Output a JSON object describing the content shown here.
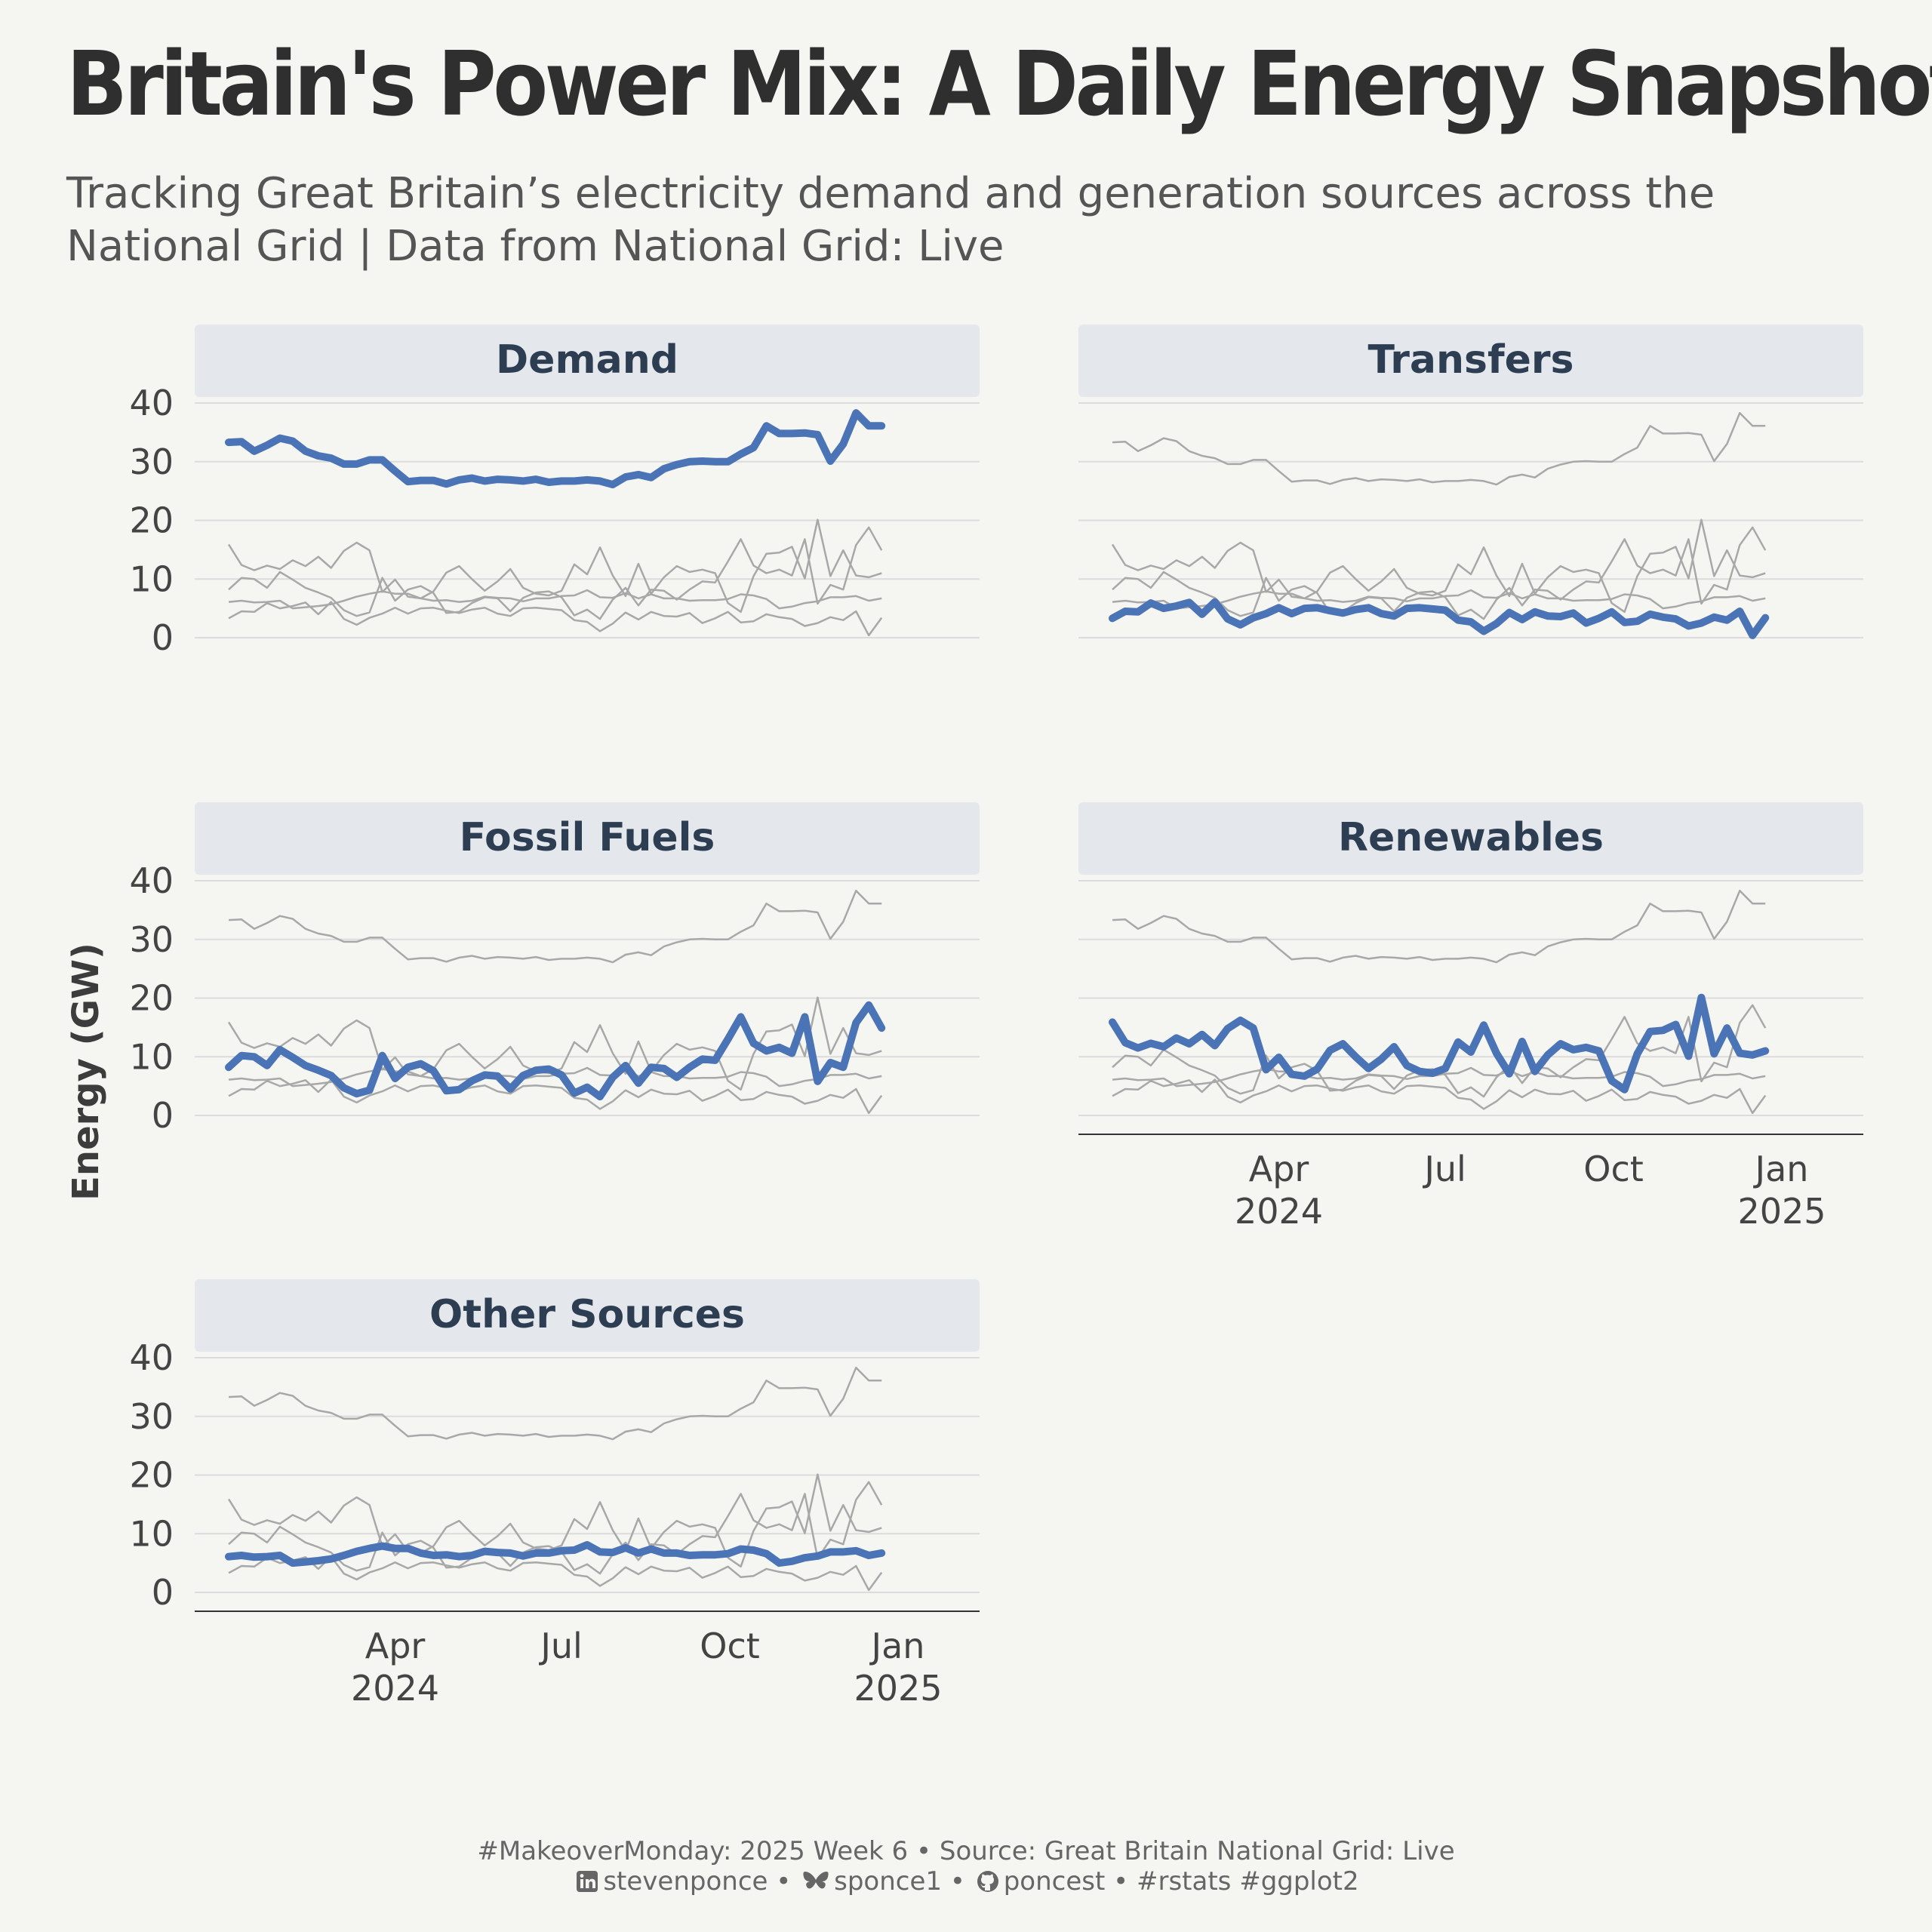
{
  "header": {
    "title": "Britain's Power Mix: A Daily Energy Snapshot",
    "subtitle": "Tracking Great Britain’s electricity demand and generation sources across the National Grid | Data from National Grid: Live"
  },
  "caption": {
    "line1": "#MakeoverMonday: 2025 Week 6 • Source: Great Britain National Grid: Live",
    "linkedin": "stevenponce",
    "bluesky": "sponce1",
    "github": "poncest",
    "tags": "#rstats #ggplot2",
    "sep": "•"
  },
  "icons": [
    "linkedin-icon",
    "bluesky-butterfly-icon",
    "github-icon"
  ],
  "colors": {
    "background": "#f5f5f2",
    "highlight": "#4a74b5",
    "context": "#a8a8a8",
    "strip": "#e4e7ec",
    "strip_text": "#2d3e52",
    "grid": "#dcdcdc"
  },
  "chart_data": {
    "type": "line",
    "layout": "small-multiples",
    "ylabel": "Energy (GW)",
    "ylim": [
      0,
      40
    ],
    "yticks": [
      0,
      10,
      20,
      30,
      40
    ],
    "xlim": [
      "2024-01-01",
      "2025-01-27"
    ],
    "xticks": [
      {
        "date": "2024-04-01",
        "label": [
          "Apr",
          "2024"
        ]
      },
      {
        "date": "2024-07-01",
        "label": [
          "Jul",
          ""
        ]
      },
      {
        "date": "2024-10-01",
        "label": [
          "Oct",
          ""
        ]
      },
      {
        "date": "2025-01-01",
        "label": [
          "Jan",
          "2025"
        ]
      }
    ],
    "x_start": "2024-01-01",
    "x_step_days": 7,
    "grid": true,
    "legend": "none",
    "series": [
      {
        "name": "Demand",
        "values": [
          33.3,
          33.4,
          31.8,
          32.8,
          34.0,
          33.5,
          31.8,
          31.0,
          30.6,
          29.6,
          29.6,
          30.3,
          30.3,
          28.4,
          26.6,
          26.8,
          26.8,
          26.2,
          26.9,
          27.2,
          26.7,
          27.0,
          26.9,
          26.7,
          27.0,
          26.5,
          26.7,
          26.7,
          26.9,
          26.7,
          26.1,
          27.4,
          27.8,
          27.3,
          28.8,
          29.5,
          30.0,
          30.1,
          30.0,
          30.0,
          31.3,
          32.4,
          36.1,
          34.8,
          34.8,
          34.9,
          34.6,
          30.1,
          33.0,
          38.3,
          36.1,
          36.1
        ]
      },
      {
        "name": "Transfers",
        "values": [
          3.3,
          4.5,
          4.4,
          5.9,
          5.0,
          5.4,
          6.0,
          4.0,
          6.1,
          3.2,
          2.2,
          3.4,
          4.1,
          5.1,
          4.1,
          5.0,
          5.1,
          4.6,
          4.2,
          4.8,
          5.1,
          4.1,
          3.7,
          5.0,
          5.1,
          4.9,
          4.7,
          3.0,
          2.7,
          1.1,
          2.4,
          4.3,
          3.1,
          4.4,
          3.7,
          3.6,
          4.2,
          2.5,
          3.3,
          4.4,
          2.6,
          2.8,
          4.0,
          3.5,
          3.2,
          2.0,
          2.5,
          3.5,
          3.0,
          4.5,
          0.4,
          3.4
        ]
      },
      {
        "name": "Fossil Fuels",
        "values": [
          8.2,
          10.2,
          10.0,
          8.5,
          11.2,
          9.9,
          8.5,
          7.7,
          6.8,
          4.7,
          3.7,
          4.3,
          10.2,
          6.3,
          8.2,
          8.8,
          7.6,
          4.2,
          4.4,
          5.9,
          6.9,
          6.7,
          4.5,
          6.8,
          7.7,
          7.9,
          6.9,
          3.8,
          4.8,
          3.2,
          6.5,
          8.5,
          5.5,
          8.2,
          8.0,
          6.5,
          8.2,
          9.6,
          9.4,
          13.0,
          16.8,
          12.3,
          11.0,
          11.6,
          10.6,
          16.8,
          5.8,
          9.0,
          8.2,
          15.8,
          18.8,
          14.9
        ]
      },
      {
        "name": "Renewables",
        "values": [
          15.9,
          12.4,
          11.5,
          12.3,
          11.7,
          13.2,
          12.2,
          13.8,
          11.9,
          14.8,
          16.2,
          14.9,
          7.8,
          9.9,
          7.0,
          6.7,
          7.9,
          11.1,
          12.2,
          10.0,
          8.0,
          9.6,
          11.7,
          8.5,
          7.5,
          7.2,
          8.0,
          12.5,
          10.8,
          15.4,
          10.6,
          7.1,
          12.6,
          7.5,
          10.3,
          12.2,
          11.2,
          11.6,
          11.0,
          5.9,
          4.4,
          10.5,
          14.3,
          14.5,
          15.5,
          10.1,
          20.1,
          10.5,
          14.9,
          10.6,
          10.3,
          11.0
        ]
      },
      {
        "name": "Other Sources",
        "values": [
          6.1,
          6.3,
          6.0,
          6.1,
          6.3,
          5.0,
          5.2,
          5.4,
          5.7,
          6.3,
          7.0,
          7.5,
          7.9,
          7.5,
          7.5,
          6.7,
          6.3,
          6.4,
          6.1,
          6.3,
          7.0,
          6.8,
          6.7,
          6.2,
          6.7,
          6.7,
          7.1,
          7.2,
          8.1,
          6.9,
          6.8,
          7.6,
          6.7,
          7.4,
          6.7,
          6.7,
          6.3,
          6.4,
          6.4,
          6.6,
          7.4,
          7.2,
          6.6,
          5.0,
          5.3,
          5.9,
          6.2,
          6.9,
          6.9,
          7.1,
          6.3,
          6.7
        ]
      }
    ]
  }
}
